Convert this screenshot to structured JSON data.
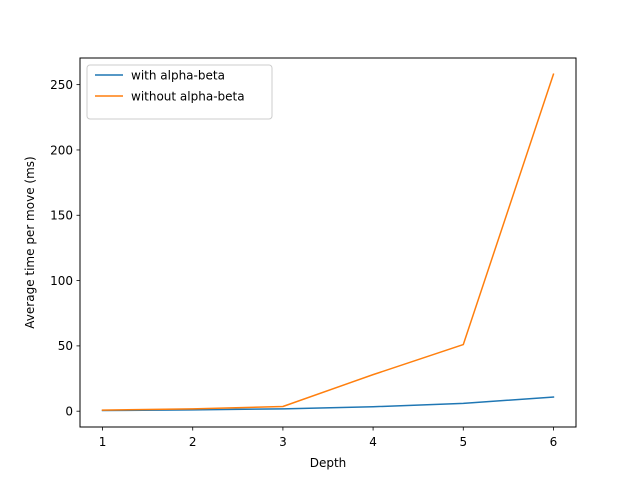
{
  "chart_data": {
    "type": "line",
    "x": [
      1,
      2,
      3,
      4,
      5,
      6
    ],
    "series": [
      {
        "name": "with alpha-beta",
        "color": "#1f77b4",
        "values": [
          0.5,
          1.0,
          1.8,
          3.4,
          6.0,
          10.8
        ]
      },
      {
        "name": "without alpha-beta",
        "color": "#ff7f0e",
        "values": [
          0.8,
          1.8,
          3.6,
          28,
          51,
          258
        ]
      }
    ],
    "xlabel": "Depth",
    "ylabel": "Average time per move (ms)",
    "xticks": [
      1,
      2,
      3,
      4,
      5,
      6
    ],
    "yticks": [
      0,
      50,
      100,
      150,
      200,
      250
    ],
    "xlim": [
      0.75,
      6.25
    ],
    "ylim": [
      -12.1,
      270.4
    ],
    "grid": false,
    "legend_position": "top-left"
  }
}
